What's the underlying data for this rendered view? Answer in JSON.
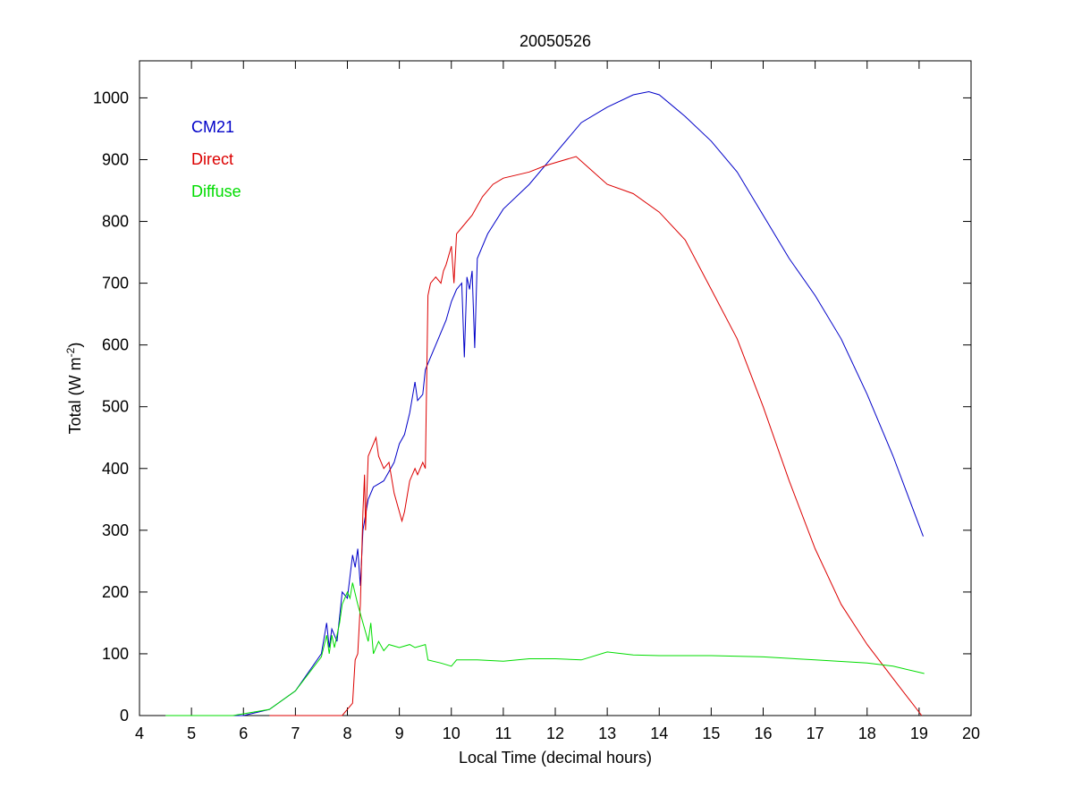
{
  "chart_data": {
    "type": "line",
    "title": "20050526",
    "xlabel": "Local Time (decimal hours)",
    "ylabel": "Total (W m-2)",
    "ylabel_parts": {
      "main": "Total (W m",
      "sup": "-2",
      "end": ")"
    },
    "xlim": [
      4,
      20
    ],
    "ylim": [
      0,
      1060
    ],
    "xticks": [
      4,
      5,
      6,
      7,
      8,
      9,
      10,
      11,
      12,
      13,
      14,
      15,
      16,
      17,
      18,
      19,
      20
    ],
    "yticks": [
      0,
      100,
      200,
      300,
      400,
      500,
      600,
      700,
      800,
      900,
      1000
    ],
    "grid": false,
    "legend_placement": "top-left",
    "series": [
      {
        "name": "CM21",
        "color": "#0000c8",
        "x": [
          4.5,
          4.8,
          5.0,
          5.2,
          6.0,
          6.5,
          7.0,
          7.5,
          7.6,
          7.65,
          7.7,
          7.8,
          7.9,
          8.0,
          8.1,
          8.15,
          8.2,
          8.25,
          8.3,
          8.4,
          8.5,
          8.7,
          8.9,
          9.0,
          9.1,
          9.2,
          9.3,
          9.35,
          9.45,
          9.5,
          9.7,
          9.9,
          10.0,
          10.1,
          10.2,
          10.25,
          10.3,
          10.35,
          10.4,
          10.45,
          10.5,
          10.7,
          11.0,
          11.5,
          12.0,
          12.5,
          13.0,
          13.5,
          13.8,
          14.0,
          14.5,
          15.0,
          15.5,
          16.0,
          16.5,
          17.0,
          17.5,
          18.0,
          18.5,
          19.08
        ],
        "y": [
          0,
          0,
          0,
          0,
          0,
          10,
          40,
          100,
          150,
          110,
          140,
          120,
          200,
          190,
          260,
          240,
          270,
          210,
          300,
          350,
          370,
          380,
          410,
          440,
          455,
          490,
          540,
          510,
          520,
          560,
          600,
          640,
          670,
          690,
          700,
          580,
          710,
          690,
          720,
          595,
          740,
          780,
          820,
          860,
          910,
          960,
          985,
          1005,
          1010,
          1005,
          970,
          930,
          880,
          810,
          740,
          680,
          610,
          520,
          420,
          290
        ]
      },
      {
        "name": "Direct",
        "color": "#dc0000",
        "x": [
          6.5,
          7.9,
          8.0,
          8.1,
          8.15,
          8.2,
          8.25,
          8.3,
          8.33,
          8.35,
          8.4,
          8.5,
          8.55,
          8.6,
          8.7,
          8.8,
          8.9,
          9.0,
          9.05,
          9.1,
          9.2,
          9.3,
          9.35,
          9.45,
          9.5,
          9.55,
          9.6,
          9.7,
          9.8,
          9.85,
          9.9,
          10.0,
          10.05,
          10.1,
          10.2,
          10.4,
          10.6,
          10.8,
          11.0,
          11.5,
          11.8,
          12.0,
          12.4,
          12.6,
          13.0,
          13.5,
          14.0,
          14.5,
          15.0,
          15.5,
          16.0,
          16.5,
          17.0,
          17.5,
          18.0,
          18.5,
          19.05
        ],
        "y": [
          0,
          0,
          10,
          20,
          90,
          100,
          180,
          330,
          390,
          300,
          420,
          440,
          450,
          420,
          400,
          410,
          360,
          330,
          315,
          330,
          380,
          400,
          390,
          410,
          400,
          680,
          700,
          710,
          700,
          720,
          730,
          760,
          700,
          780,
          790,
          810,
          840,
          860,
          870,
          880,
          890,
          895,
          905,
          890,
          860,
          845,
          815,
          770,
          690,
          610,
          500,
          380,
          270,
          180,
          115,
          60,
          0
        ]
      },
      {
        "name": "Diffuse",
        "color": "#00dc00",
        "x": [
          4.5,
          4.8,
          5.0,
          5.2,
          5.8,
          6.5,
          7.0,
          7.5,
          7.6,
          7.65,
          7.7,
          7.75,
          7.85,
          7.9,
          8.0,
          8.05,
          8.1,
          8.2,
          8.3,
          8.4,
          8.45,
          8.5,
          8.6,
          8.7,
          8.8,
          9.0,
          9.2,
          9.3,
          9.5,
          9.55,
          9.8,
          10.0,
          10.1,
          10.5,
          11.0,
          11.5,
          12.0,
          12.5,
          13.0,
          13.5,
          14.0,
          15.0,
          16.0,
          17.0,
          18.0,
          18.5,
          19.1
        ],
        "y": [
          0,
          0,
          0,
          0,
          0,
          10,
          40,
          95,
          130,
          100,
          130,
          110,
          150,
          180,
          200,
          190,
          215,
          180,
          150,
          120,
          150,
          100,
          120,
          105,
          115,
          110,
          115,
          110,
          115,
          90,
          85,
          80,
          90,
          90,
          88,
          92,
          92,
          90,
          103,
          98,
          97,
          97,
          95,
          90,
          85,
          80,
          68
        ]
      }
    ]
  }
}
